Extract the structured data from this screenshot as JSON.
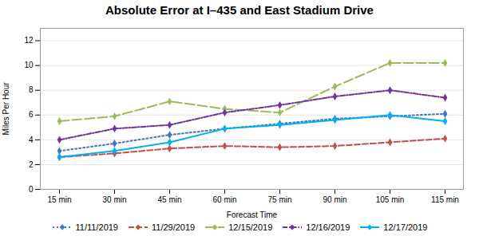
{
  "chart_data": {
    "type": "line",
    "title": "Absolute Error at I–435 and East Stadium Drive",
    "xlabel": "Forecast Time",
    "ylabel": "Miles Per Hour",
    "categories": [
      "15 min",
      "30 min",
      "45 min",
      "60 min",
      "75 min",
      "90 min",
      "105 min",
      "115 min"
    ],
    "series": [
      {
        "name": "11/11/2019",
        "color": "#4472C4",
        "line_style": "dotted",
        "marker": "diamond",
        "values": [
          3.1,
          3.7,
          4.4,
          4.9,
          5.3,
          5.7,
          5.9,
          6.1
        ]
      },
      {
        "name": "11/29/2019",
        "color": "#C0504D",
        "line_style": "short_dash",
        "marker": "diamond",
        "values": [
          2.6,
          2.9,
          3.3,
          3.5,
          3.4,
          3.5,
          3.8,
          4.1
        ]
      },
      {
        "name": "12/15/2019",
        "color": "#9BBB59",
        "line_style": "long_dash",
        "marker": "diamond",
        "values": [
          5.5,
          5.9,
          7.1,
          6.5,
          6.2,
          8.3,
          10.2,
          10.2
        ]
      },
      {
        "name": "12/16/2019",
        "color": "#7030A0",
        "line_style": "dash_dot",
        "marker": "diamond",
        "values": [
          4.0,
          4.9,
          5.2,
          6.2,
          6.8,
          7.5,
          8.0,
          7.4
        ]
      },
      {
        "name": "12/17/2019",
        "color": "#00B0F0",
        "line_style": "solid",
        "marker": "diamond",
        "values": [
          2.6,
          3.1,
          3.8,
          4.9,
          5.2,
          5.6,
          6.0,
          5.5
        ]
      }
    ],
    "ylim": [
      0,
      13
    ],
    "yticks": [
      0,
      2,
      4,
      6,
      8,
      10,
      12
    ],
    "grid": true,
    "legend": "bottom"
  }
}
